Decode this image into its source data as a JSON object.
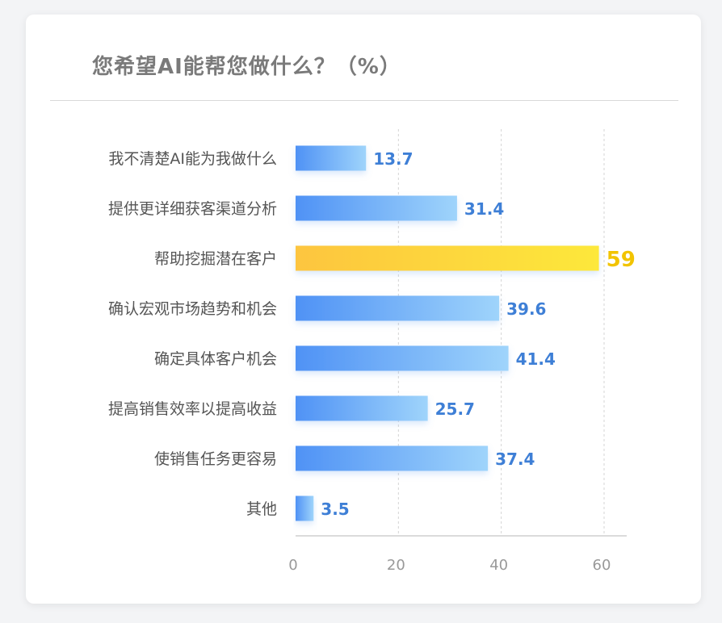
{
  "chart_data": {
    "type": "bar",
    "orientation": "horizontal",
    "title": "您希望AI能帮您做什么？（%）",
    "categories": [
      "我不清楚AI能为我做什么",
      "提供更详细获客渠道分析",
      "帮助挖掘潜在客户",
      "确认宏观市场趋势和机会",
      "确定具体客户机会",
      "提高销售效率以提高收益",
      "使销售任务更容易",
      "其他"
    ],
    "values": [
      13.7,
      31.4,
      59,
      39.6,
      41.4,
      25.7,
      37.4,
      3.5
    ],
    "value_labels": [
      "13.7",
      "31.4",
      "59",
      "39.6",
      "41.4",
      "25.7",
      "37.4",
      "3.5"
    ],
    "highlight_index": 2,
    "xlim": [
      0,
      60
    ],
    "xticks": [
      "0",
      "20",
      "40",
      "60"
    ],
    "grid": "vertical-dashed",
    "colors": {
      "bar_start": "#4f92f5",
      "bar_end": "#9fd4fb",
      "highlight_start": "#fdc53f",
      "highlight_end": "#fde83a",
      "value_label": "#3e7fd6",
      "highlight_label": "#f2c400",
      "category_label": "#555555",
      "tick_label": "#999999",
      "grid": "#d4d4d4"
    }
  }
}
